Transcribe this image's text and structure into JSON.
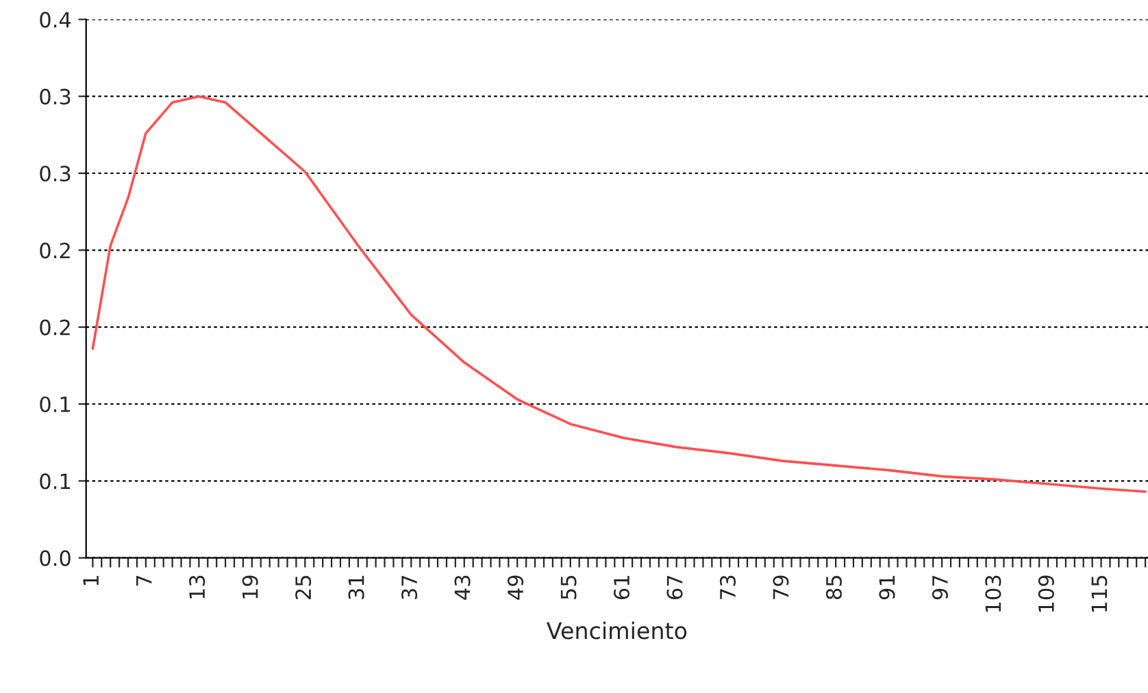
{
  "chart_data": {
    "type": "line",
    "xlabel": "Vencimiento",
    "series": [
      {
        "color": "#ff5050",
        "x": [
          1,
          3,
          5,
          7,
          10,
          13,
          16,
          19,
          25,
          31,
          37,
          43,
          49,
          55,
          61,
          67,
          73,
          79,
          85,
          91,
          97,
          103,
          109,
          115,
          120
        ],
        "values": [
          0.136,
          0.203,
          0.234,
          0.276,
          0.296,
          0.3,
          0.296,
          0.281,
          0.251,
          0.203,
          0.158,
          0.127,
          0.103,
          0.087,
          0.078,
          0.072,
          0.068,
          0.063,
          0.06,
          0.057,
          0.053,
          0.051,
          0.048,
          0.045,
          0.043
        ]
      }
    ],
    "xlim": [
      0.25,
      120.3
    ],
    "xticks": [
      1,
      {
        "value": 2,
        "label": null
      },
      {
        "value": 3,
        "label": null
      },
      {
        "value": 4,
        "label": null
      },
      {
        "value": 5,
        "label": null
      },
      {
        "value": 6,
        "label": null
      },
      7,
      {
        "value": 8,
        "label": null
      },
      {
        "value": 9,
        "label": null
      },
      {
        "value": 10,
        "label": null
      },
      {
        "value": 11,
        "label": null
      },
      {
        "value": 12,
        "label": null
      },
      13,
      {
        "value": 14,
        "label": null
      },
      {
        "value": 15,
        "label": null
      },
      {
        "value": 16,
        "label": null
      },
      {
        "value": 17,
        "label": null
      },
      {
        "value": 18,
        "label": null
      },
      19,
      {
        "value": 20,
        "label": null
      },
      {
        "value": 21,
        "label": null
      },
      {
        "value": 22,
        "label": null
      },
      {
        "value": 23,
        "label": null
      },
      {
        "value": 24,
        "label": null
      },
      25,
      {
        "value": 26,
        "label": null
      },
      {
        "value": 27,
        "label": null
      },
      {
        "value": 28,
        "label": null
      },
      {
        "value": 29,
        "label": null
      },
      {
        "value": 30,
        "label": null
      },
      31,
      {
        "value": 32,
        "label": null
      },
      {
        "value": 33,
        "label": null
      },
      {
        "value": 34,
        "label": null
      },
      {
        "value": 35,
        "label": null
      },
      {
        "value": 36,
        "label": null
      },
      37,
      {
        "value": 38,
        "label": null
      },
      {
        "value": 39,
        "label": null
      },
      {
        "value": 40,
        "label": null
      },
      {
        "value": 41,
        "label": null
      },
      {
        "value": 42,
        "label": null
      },
      43,
      {
        "value": 44,
        "label": null
      },
      {
        "value": 45,
        "label": null
      },
      {
        "value": 46,
        "label": null
      },
      {
        "value": 47,
        "label": null
      },
      {
        "value": 48,
        "label": null
      },
      49,
      {
        "value": 50,
        "label": null
      },
      {
        "value": 51,
        "label": null
      },
      {
        "value": 52,
        "label": null
      },
      {
        "value": 53,
        "label": null
      },
      {
        "value": 54,
        "label": null
      },
      55,
      {
        "value": 56,
        "label": null
      },
      {
        "value": 57,
        "label": null
      },
      {
        "value": 58,
        "label": null
      },
      {
        "value": 59,
        "label": null
      },
      {
        "value": 60,
        "label": null
      },
      61,
      {
        "value": 62,
        "label": null
      },
      {
        "value": 63,
        "label": null
      },
      {
        "value": 64,
        "label": null
      },
      {
        "value": 65,
        "label": null
      },
      {
        "value": 66,
        "label": null
      },
      67,
      {
        "value": 68,
        "label": null
      },
      {
        "value": 69,
        "label": null
      },
      {
        "value": 70,
        "label": null
      },
      {
        "value": 71,
        "label": null
      },
      {
        "value": 72,
        "label": null
      },
      73,
      {
        "value": 74,
        "label": null
      },
      {
        "value": 75,
        "label": null
      },
      {
        "value": 76,
        "label": null
      },
      {
        "value": 77,
        "label": null
      },
      {
        "value": 78,
        "label": null
      },
      79,
      {
        "value": 80,
        "label": null
      },
      {
        "value": 81,
        "label": null
      },
      {
        "value": 82,
        "label": null
      },
      {
        "value": 83,
        "label": null
      },
      {
        "value": 84,
        "label": null
      },
      85,
      {
        "value": 86,
        "label": null
      },
      {
        "value": 87,
        "label": null
      },
      {
        "value": 88,
        "label": null
      },
      {
        "value": 89,
        "label": null
      },
      {
        "value": 90,
        "label": null
      },
      91,
      {
        "value": 92,
        "label": null
      },
      {
        "value": 93,
        "label": null
      },
      {
        "value": 94,
        "label": null
      },
      {
        "value": 95,
        "label": null
      },
      {
        "value": 96,
        "label": null
      },
      97,
      {
        "value": 98,
        "label": null
      },
      {
        "value": 99,
        "label": null
      },
      {
        "value": 100,
        "label": null
      },
      {
        "value": 101,
        "label": null
      },
      {
        "value": 102,
        "label": null
      },
      103,
      {
        "value": 104,
        "label": null
      },
      {
        "value": 105,
        "label": null
      },
      {
        "value": 106,
        "label": null
      },
      {
        "value": 107,
        "label": null
      },
      {
        "value": 108,
        "label": null
      },
      109,
      {
        "value": 110,
        "label": null
      },
      {
        "value": 111,
        "label": null
      },
      {
        "value": 112,
        "label": null
      },
      {
        "value": 113,
        "label": null
      },
      {
        "value": 114,
        "label": null
      },
      115,
      {
        "value": 116,
        "label": null
      },
      {
        "value": 117,
        "label": null
      },
      {
        "value": 118,
        "label": null
      },
      {
        "value": 119,
        "label": null
      },
      {
        "value": 120,
        "label": null
      }
    ],
    "ylim": [
      0,
      0.35
    ],
    "yticks": [
      {
        "value": 0,
        "label": "0.0"
      },
      {
        "value": 0.05,
        "label": "0.1"
      },
      {
        "value": 0.1,
        "label": "0.1"
      },
      {
        "value": 0.15,
        "label": "0.2"
      },
      {
        "value": 0.2,
        "label": "0.2"
      },
      {
        "value": 0.25,
        "label": "0.3"
      },
      {
        "value": 0.3,
        "label": "0.3"
      },
      {
        "value": 0.35,
        "label": "0.4"
      }
    ],
    "grid": "y",
    "legend": false,
    "marker": "none",
    "line_style": "solid"
  }
}
